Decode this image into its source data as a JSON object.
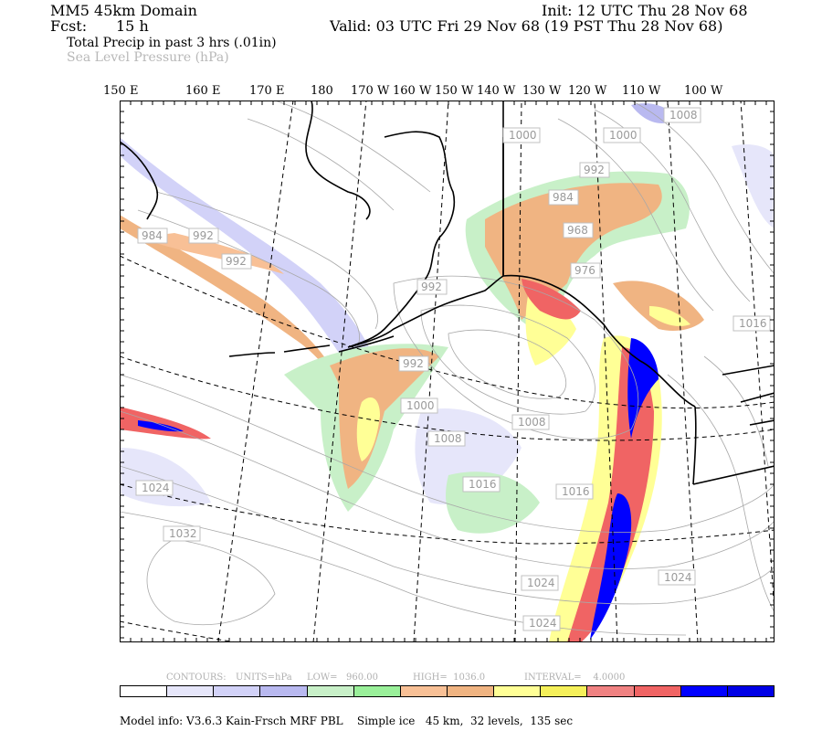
{
  "header": {
    "domain": "MM5 45km Domain",
    "init": "Init: 12 UTC Thu 28 Nov 68",
    "fcst_label": "Fcst:",
    "fcst_value": "15 h",
    "valid": "Valid: 03 UTC Fri 29 Nov 68 (19 PST Thu 28 Nov 68)",
    "field1": "Total Precip in past 3 hrs (.01in)",
    "field2": "Sea Level Pressure (hPa)"
  },
  "longitude_labels": [
    "150 E",
    "160 E",
    "170 E",
    "180",
    "170 W",
    "160 W",
    "150 W",
    "140 W",
    "130 W",
    "120 W",
    "110 W",
    "100 W"
  ],
  "pressure_labels": [
    "1008",
    "1000",
    "1000",
    "992",
    "984",
    "968",
    "976",
    "984",
    "992",
    "992",
    "992",
    "992",
    "1000",
    "1008",
    "1008",
    "1016",
    "1016",
    "1016",
    "1024",
    "1032",
    "1024",
    "1024",
    "1024"
  ],
  "colorbar": {
    "colors": [
      "#ffffff",
      "#e6e6fa",
      "#d2d2f8",
      "#b9b9f0",
      "#c8f0c8",
      "#9af09a",
      "#f8c096",
      "#f0b482",
      "#ffff96",
      "#f5f05a",
      "#f08282",
      "#f06464",
      "#0000ff",
      "#0000e6"
    ]
  },
  "contour_info": {
    "contours": "CONTOURS:",
    "units": "UNITS=hPa",
    "low": "LOW=   960.00",
    "high": "HIGH=  1036.0",
    "interval": "INTERVAL=    4.0000"
  },
  "footer": "Model info: V3.6.3 Kain-Frsch MRF PBL    Simple ice   45 km,  32 levels,  135 sec"
}
